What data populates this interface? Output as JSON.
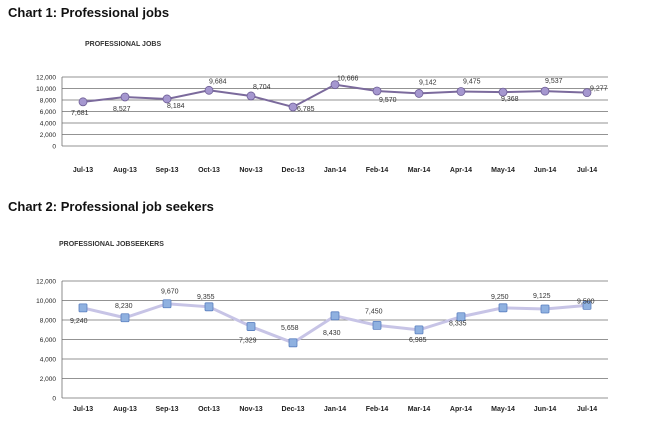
{
  "headings": {
    "chart1": "Chart 1: Professional jobs",
    "chart2": "Chart 2: Professional job seekers"
  },
  "chart_data": [
    {
      "type": "line",
      "title": "PROFESSIONAL JOBS",
      "xlabel": "",
      "ylabel": "",
      "categories": [
        "Jul-13",
        "Aug-13",
        "Sep-13",
        "Oct-13",
        "Nov-13",
        "Dec-13",
        "Jan-14",
        "Feb-14",
        "Mar-14",
        "Apr-14",
        "May-14",
        "Jun-14",
        "Jul-14"
      ],
      "values": [
        7681,
        8527,
        8184,
        9684,
        8704,
        6785,
        10666,
        9570,
        9142,
        9475,
        9368,
        9537,
        9277
      ],
      "value_labels": [
        "7,681",
        "8,527",
        "8,184",
        "9,684",
        "8,704",
        "6,785",
        "10,666",
        "9,570",
        "9,142",
        "9,475",
        "9,368",
        "9,537",
        "9,277"
      ],
      "ylim": [
        0,
        12000
      ],
      "yticks": [
        0,
        2000,
        4000,
        6000,
        8000,
        10000,
        12000
      ],
      "ytick_labels": [
        "0",
        "2,000",
        "4,000",
        "6,000",
        "8,000",
        "10,000",
        "12,000"
      ],
      "grid": true,
      "marker": "circle",
      "colors": {
        "line": "#7b6a9c",
        "marker": "#a597cf",
        "marker_edge": "#6d5d95"
      }
    },
    {
      "type": "line",
      "title": "PROFESSIONAL  JOBSEEKERS",
      "xlabel": "",
      "ylabel": "",
      "categories": [
        "Jul-13",
        "Aug-13",
        "Sep-13",
        "Oct-13",
        "Nov-13",
        "Dec-13",
        "Jan-14",
        "Feb-14",
        "Mar-14",
        "Apr-14",
        "May-14",
        "Jun-14",
        "Jul-14"
      ],
      "values": [
        9240,
        8230,
        9670,
        9355,
        7329,
        5658,
        8430,
        7450,
        6985,
        8335,
        9250,
        9125,
        9500
      ],
      "value_labels": [
        "9,240",
        "8,230",
        "9,670",
        "9,355",
        "7,329",
        "5,658",
        "8,430",
        "7,450",
        "6,985",
        "8,335",
        "9,250",
        "9,125",
        "9,500"
      ],
      "ylim": [
        0,
        12000
      ],
      "yticks": [
        0,
        2000,
        4000,
        6000,
        8000,
        10000,
        12000
      ],
      "ytick_labels": [
        "0",
        "2,000",
        "4,000",
        "6,000",
        "8,000",
        "10,000",
        "12,000"
      ],
      "grid": true,
      "marker": "square",
      "colors": {
        "line": "#c7c4e6",
        "marker": "#8fb1e0",
        "marker_edge": "#5a7fbf"
      }
    }
  ]
}
